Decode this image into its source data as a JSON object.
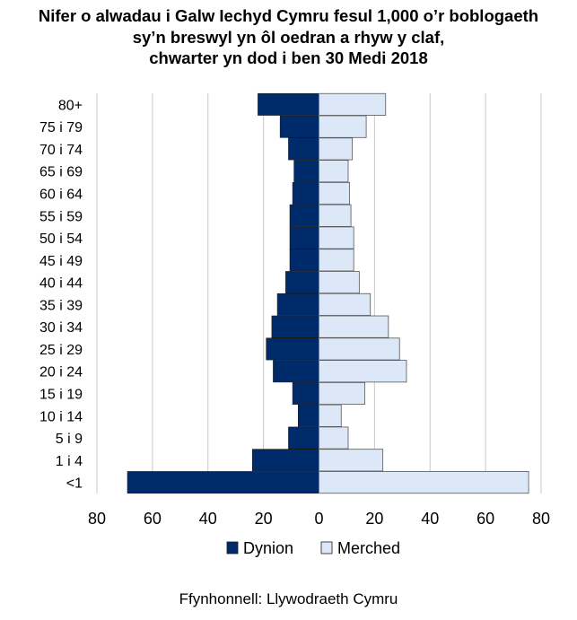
{
  "title_lines": [
    "Nifer o alwadau i Galw Iechyd Cymru fesul 1,000 o’r boblogaeth",
    "sy’n breswyl yn ôl oedran a rhyw y claf,",
    "chwarter yn dod i ben 30 Medi 2018"
  ],
  "source": "Ffynhonnell: Llywodraeth Cymru",
  "chart_data": {
    "type": "bar",
    "orientation": "horizontal",
    "layout": "population-pyramid",
    "categories": [
      "80+",
      "75 i 79",
      "70 i 74",
      "65 i 69",
      "60 i 64",
      "55 i 59",
      "50 i 54",
      "45 i 49",
      "40 i 44",
      "35 i 39",
      "30 i 34",
      "25 i 29",
      "20 i 24",
      "15 i 19",
      "10 i 14",
      "5 i 9",
      "1 i 4",
      "<1"
    ],
    "series": [
      {
        "name": "Dynion",
        "color": "#002b6b",
        "values": [
          22,
          14,
          11,
          9,
          9.5,
          10.5,
          10.5,
          10.5,
          12,
          15,
          17,
          19,
          16.5,
          9.5,
          7.5,
          11,
          24,
          69
        ]
      },
      {
        "name": "Merched",
        "color": "#dce8f8",
        "values": [
          24,
          17,
          12,
          10.5,
          11,
          11.5,
          12.5,
          12.5,
          14.5,
          18.5,
          25,
          29,
          31.5,
          16.5,
          8,
          10.5,
          23,
          75.5
        ]
      }
    ],
    "xlim": [
      -80,
      80
    ],
    "xticks": [
      "80",
      "60",
      "40",
      "20",
      "0",
      "20",
      "40",
      "60",
      "80"
    ],
    "grid": true,
    "legend_position": "bottom"
  }
}
